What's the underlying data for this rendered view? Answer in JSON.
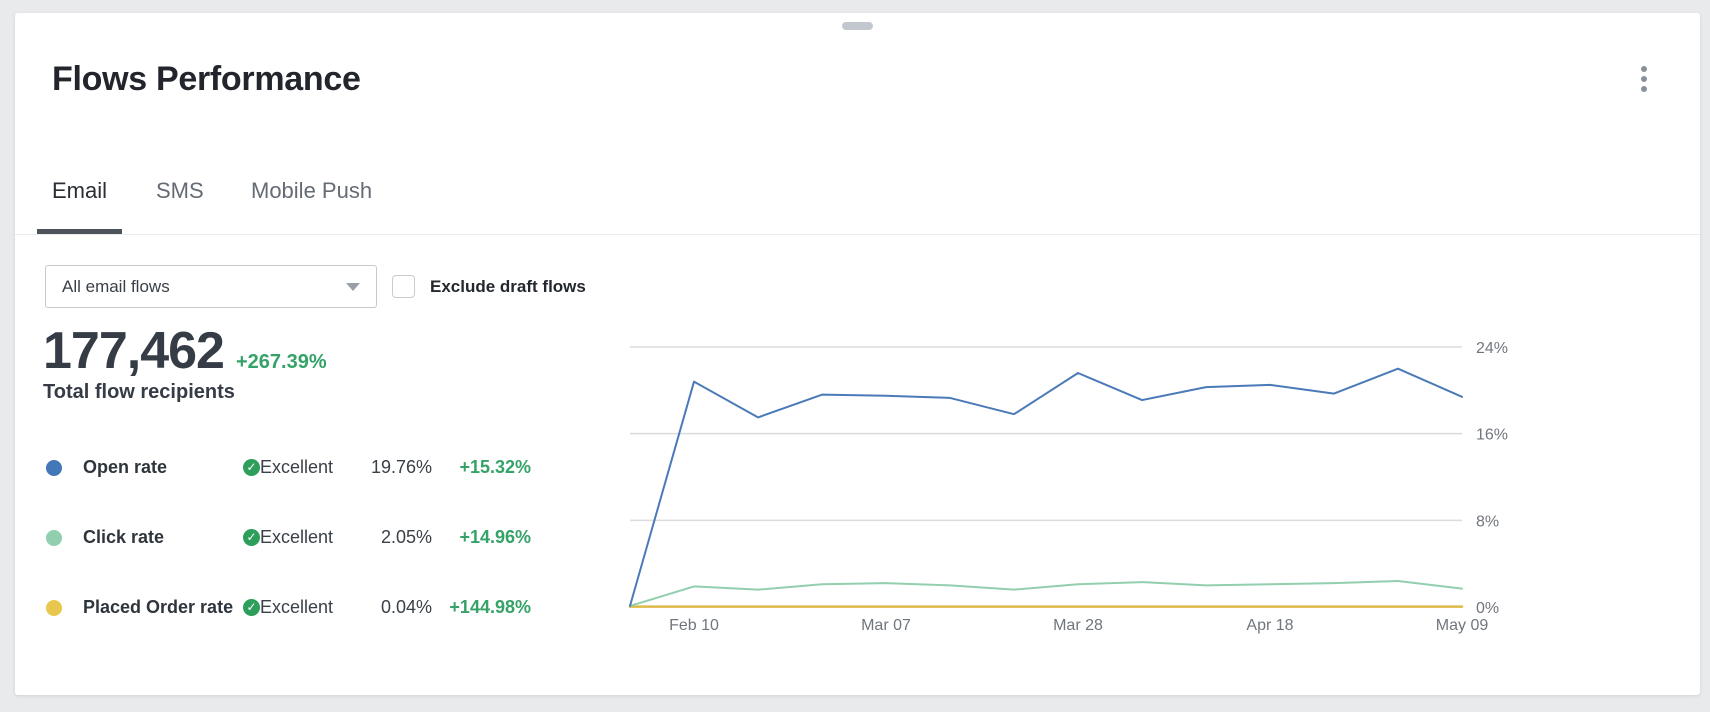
{
  "card": {
    "title": "Flows Performance",
    "tabs": [
      {
        "label": "Email",
        "active": true
      },
      {
        "label": "SMS",
        "active": false
      },
      {
        "label": "Mobile Push",
        "active": false
      }
    ],
    "filters": {
      "flow_dropdown_value": "All email flows",
      "exclude_checkbox_label": "Exclude draft flows",
      "exclude_checkbox_checked": false
    },
    "summary": {
      "value": "177,462",
      "delta": "+267.39%",
      "label": "Total flow recipients"
    },
    "metrics": [
      {
        "name": "Open rate",
        "status": "Excellent",
        "value": "19.76%",
        "delta": "+15.32%",
        "color": "#4477b7"
      },
      {
        "name": "Click rate",
        "status": "Excellent",
        "value": "2.05%",
        "delta": "+14.96%",
        "color": "#92cfae"
      },
      {
        "name": "Placed Order rate",
        "status": "Excellent",
        "value": "0.04%",
        "delta": "+144.98%",
        "color": "#e9c64d"
      }
    ],
    "status_check_glyph": "✓"
  },
  "chart_data": {
    "type": "line",
    "x_labels": [
      "Feb 10",
      "Mar 07",
      "Mar 28",
      "Apr 18",
      "May 09"
    ],
    "x_label_indices": [
      1,
      4,
      7,
      10,
      13
    ],
    "y_ticks": [
      "24%",
      "16%",
      "8%",
      "0%"
    ],
    "y_tick_values": [
      24,
      16,
      8,
      0
    ],
    "ylim": [
      0,
      26
    ],
    "grid": true,
    "legend_position": "none",
    "series": [
      {
        "name": "Open rate",
        "color": "#4a7ab8",
        "width": 2,
        "values": [
          0.1,
          20.8,
          17.5,
          19.6,
          19.5,
          19.3,
          17.8,
          21.6,
          19.1,
          20.3,
          20.5,
          19.7,
          22.0,
          19.4
        ]
      },
      {
        "name": "Click rate",
        "color": "#92cfae",
        "width": 2,
        "values": [
          0.1,
          1.9,
          1.6,
          2.1,
          2.2,
          2.0,
          1.6,
          2.1,
          2.3,
          2.0,
          2.1,
          2.2,
          2.4,
          1.7
        ]
      },
      {
        "name": "Placed Order rate",
        "color": "#ddb948",
        "width": 2.5,
        "values": [
          0.04,
          0.04,
          0.04,
          0.04,
          0.04,
          0.04,
          0.04,
          0.04,
          0.04,
          0.04,
          0.04,
          0.04,
          0.04,
          0.04
        ]
      }
    ],
    "colors": {
      "grid": "#d9dbde",
      "axis_text": "#70767d"
    }
  }
}
